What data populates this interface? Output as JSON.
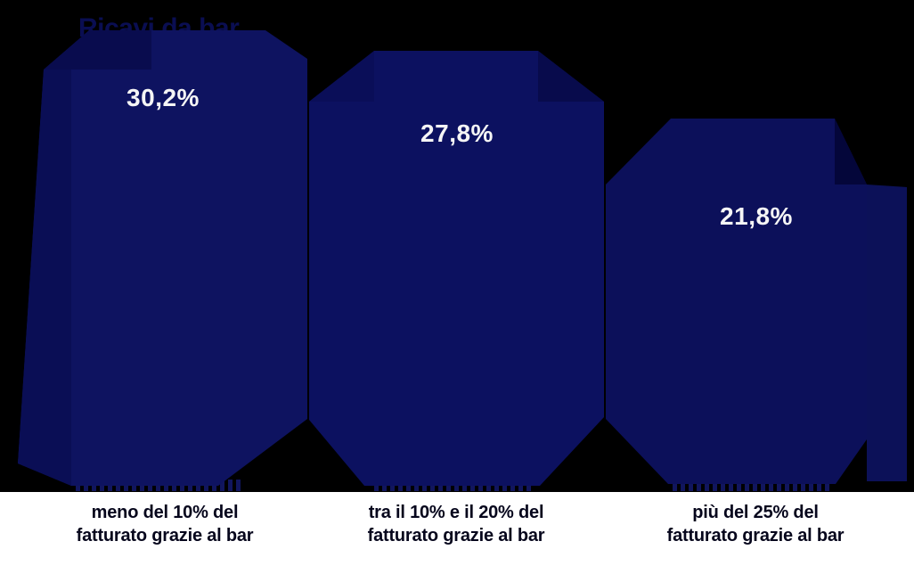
{
  "chart_data": {
    "type": "bar",
    "title": "Ricavi da bar",
    "categories": [
      "meno del 10% del fatturato grazie al bar",
      "tra il 10% e il 20% del fatturato grazie al bar",
      "più del 25% del fatturato grazie al bar"
    ],
    "categories_lines": [
      [
        "meno del 10% del",
        "fatturato grazie al bar"
      ],
      [
        "tra il 10% e il 20% del",
        "fatturato grazie al bar"
      ],
      [
        "più del 25% del",
        "fatturato grazie al bar"
      ]
    ],
    "values": [
      30.2,
      27.8,
      21.8
    ],
    "value_labels": [
      "30,2%",
      "27,8%",
      "21,8%"
    ],
    "unit": "%",
    "ylim": [
      0,
      35
    ],
    "legend": "none",
    "grid": "off",
    "style": "hand-drawn banner bars, dashed baseline ticks under each bar"
  },
  "colors": {
    "background": "#000000",
    "label_strip": "#ffffff",
    "bar1_main": "#0e1360",
    "bar1_left_panel": "#0a0e55",
    "bar1_cap_dark": "#090c4e",
    "bar2_main": "#0c1160",
    "bar2_tr_dark": "#080b4c",
    "bar2_tl_dark": "#0a0e58",
    "bar3_main": "#0c105a",
    "bar3_tr_dark": "#04063a",
    "side_panel": "#0c1158",
    "title_text": "#0a0e52",
    "value_text": "#f5f5f5",
    "category_text": "#06061c",
    "dash": "#11165e"
  }
}
